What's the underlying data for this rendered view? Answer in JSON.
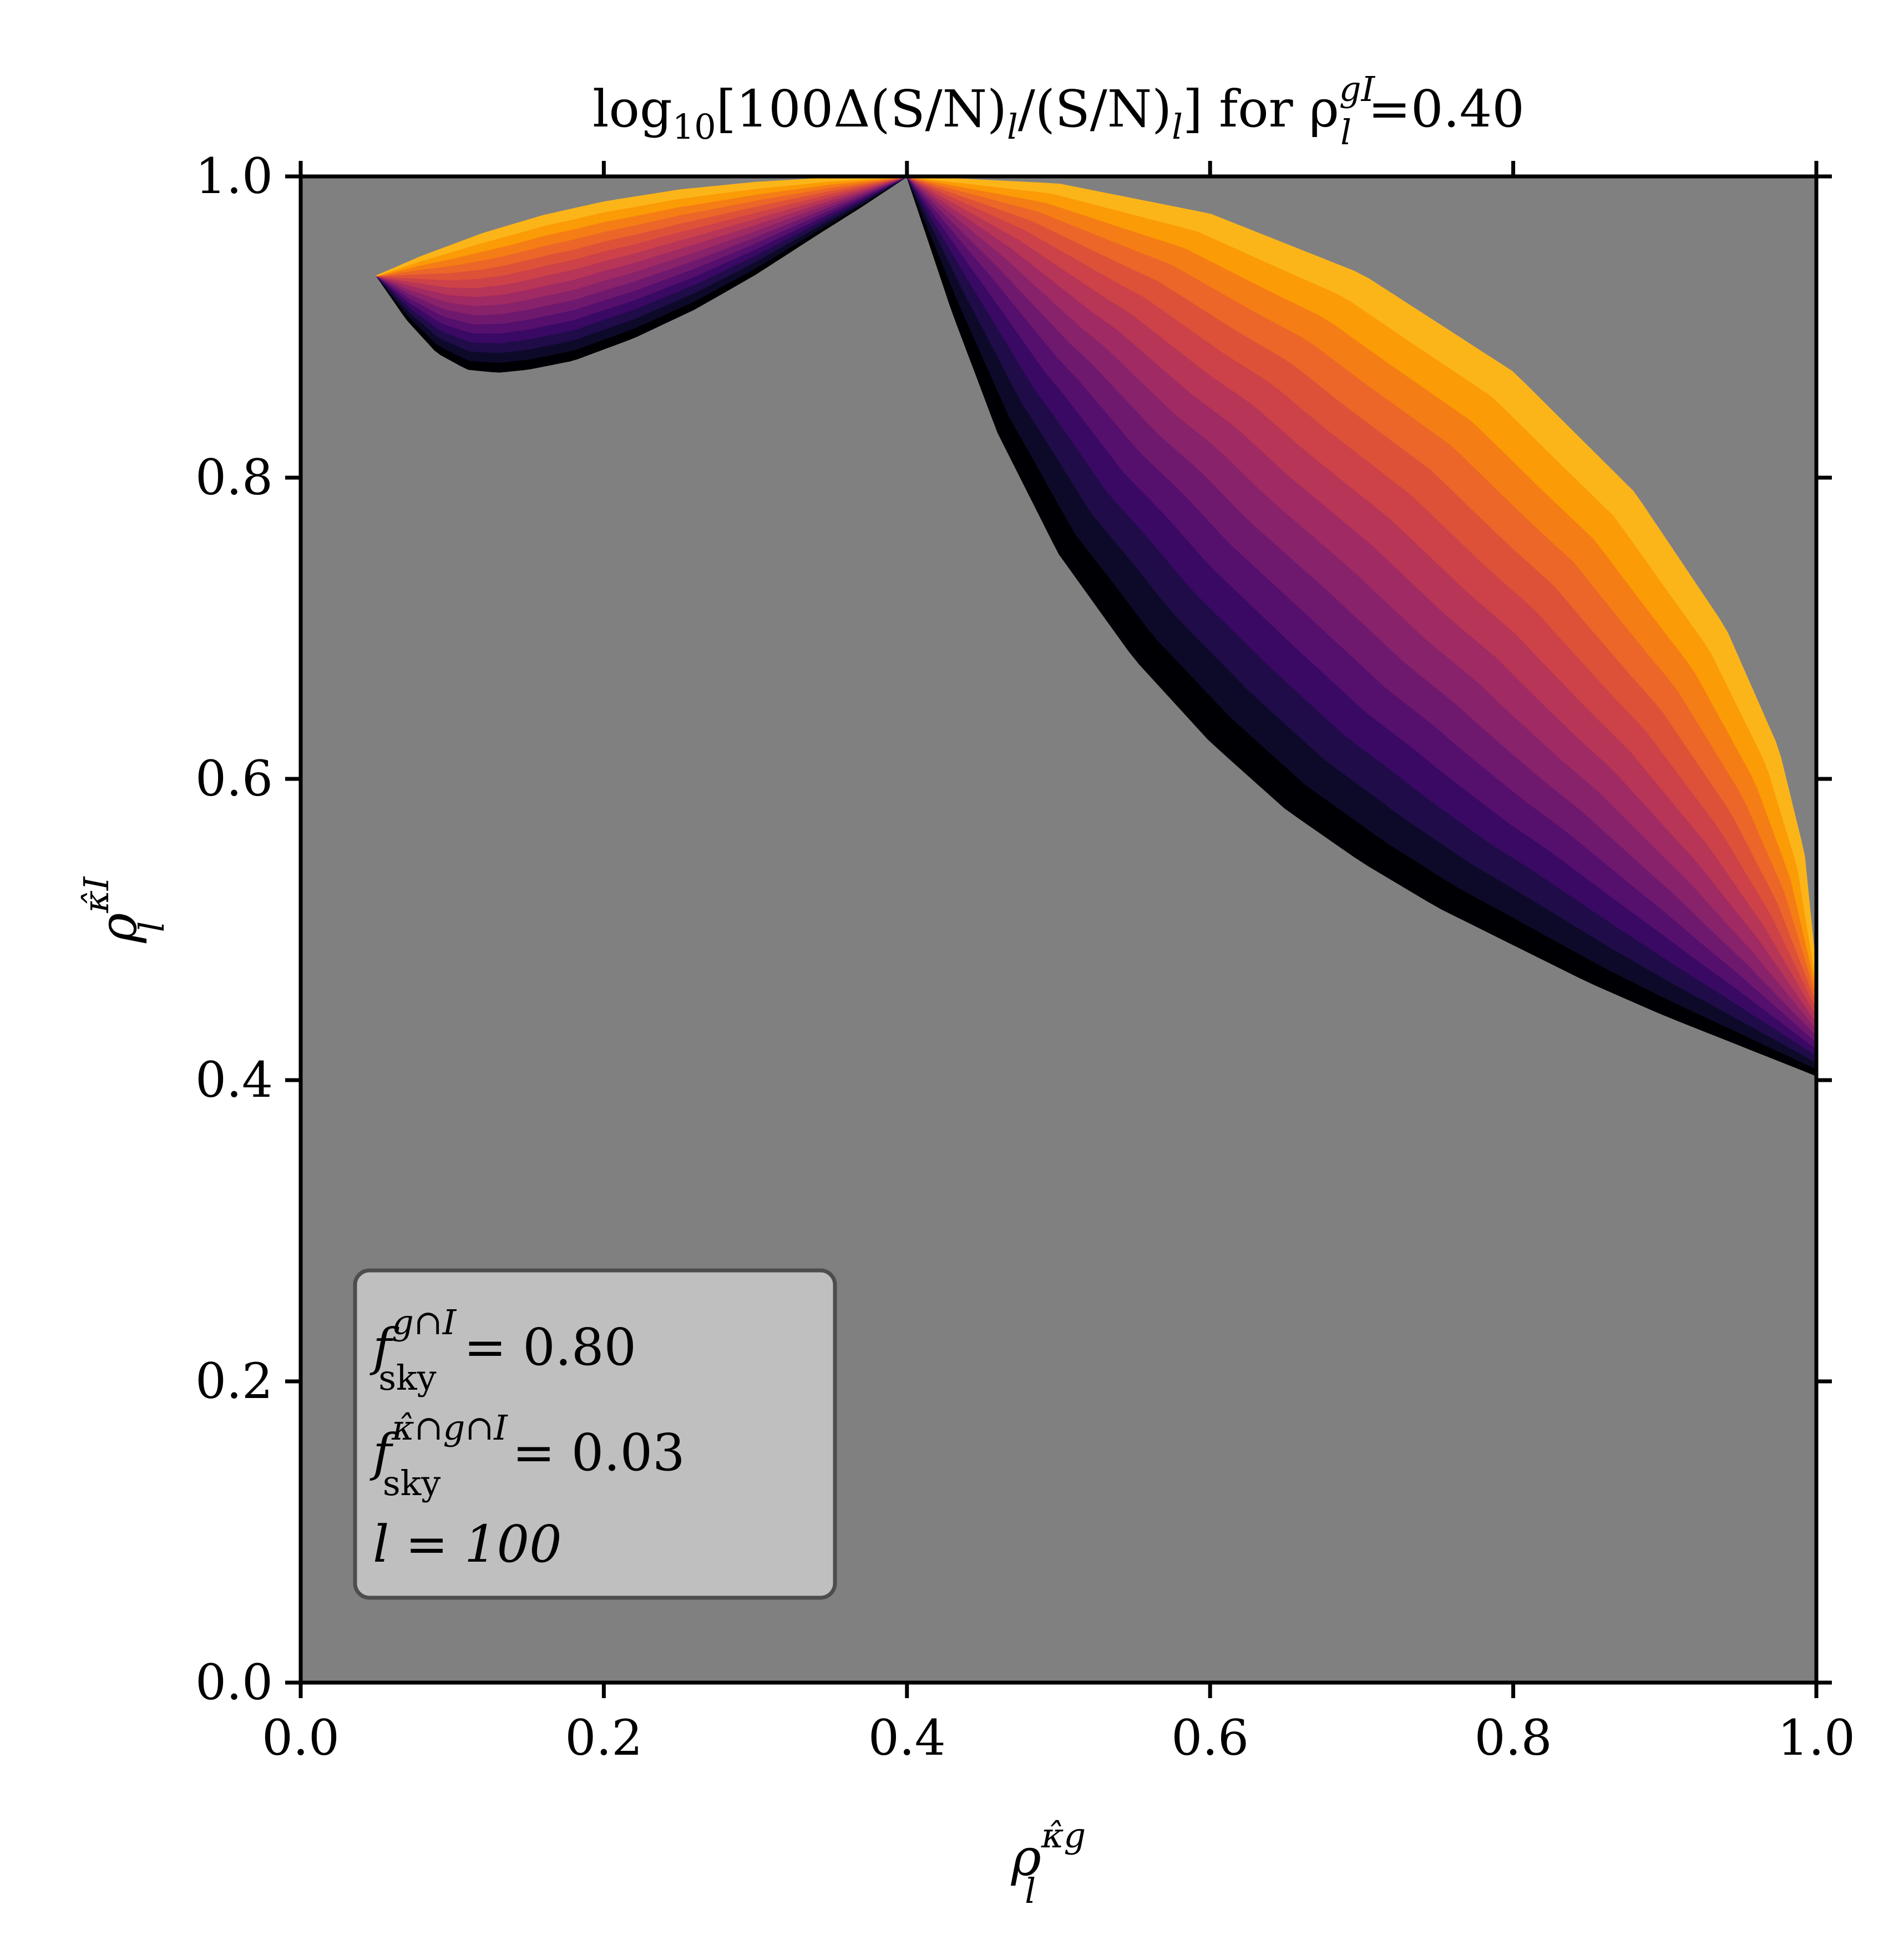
{
  "chart_data": {
    "type": "heatmap",
    "title_parts": {
      "pre": "log",
      "sub": "10",
      "mid": "[100Δ(S/N)",
      "sub2": "l",
      "mid2": "/(S/N)",
      "sub3": "l",
      "end": "] for ρ",
      "sup4": "gI",
      "sub4": "l",
      "value": "=0.40"
    },
    "xlabel": {
      "base": "ρ",
      "sup": "κ̂g",
      "sub": "l"
    },
    "ylabel": {
      "base": "ρ",
      "sup": "κ̂I",
      "sub": "l"
    },
    "xlim": [
      0,
      1
    ],
    "ylim": [
      0,
      1
    ],
    "xticks": [
      "0.0",
      "0.2",
      "0.4",
      "0.6",
      "0.8",
      "1.0"
    ],
    "yticks": [
      "0.0",
      "0.2",
      "0.4",
      "0.6",
      "0.8",
      "1.0"
    ],
    "background_color": "#808080",
    "colormap": "inferno",
    "colors": [
      "#000004",
      "#0d0a29",
      "#1f0c48",
      "#390963",
      "#550f6d",
      "#6f196e",
      "#88226a",
      "#a02a63",
      "#b73557",
      "#cc4248",
      "#dd5139",
      "#eb6628",
      "#f57d15",
      "#fb9b06",
      "#fcb519"
    ],
    "regions": [
      {
        "name": "left-lobe",
        "outer": [
          [
            0.05,
            0.934
          ],
          [
            0.08,
            0.947
          ],
          [
            0.12,
            0.962
          ],
          [
            0.16,
            0.974
          ],
          [
            0.2,
            0.983
          ],
          [
            0.25,
            0.991
          ],
          [
            0.3,
            0.996
          ],
          [
            0.35,
            0.999
          ],
          [
            0.4,
            1.0
          ]
        ],
        "inner": [
          [
            0.05,
            0.934
          ],
          [
            0.07,
            0.905
          ],
          [
            0.09,
            0.883
          ],
          [
            0.11,
            0.872
          ],
          [
            0.13,
            0.87
          ],
          [
            0.15,
            0.872
          ],
          [
            0.18,
            0.878
          ],
          [
            0.22,
            0.893
          ],
          [
            0.26,
            0.912
          ],
          [
            0.3,
            0.935
          ],
          [
            0.34,
            0.961
          ],
          [
            0.37,
            0.98
          ],
          [
            0.4,
            1.0
          ]
        ]
      },
      {
        "name": "right-lobe",
        "outer": [
          [
            0.4,
            1.0
          ],
          [
            0.5,
            0.995
          ],
          [
            0.6,
            0.975
          ],
          [
            0.7,
            0.935
          ],
          [
            0.8,
            0.87
          ],
          [
            0.88,
            0.79
          ],
          [
            0.94,
            0.7
          ],
          [
            0.975,
            0.62
          ],
          [
            0.992,
            0.55
          ],
          [
            1.0,
            0.47
          ]
        ],
        "inner": [
          [
            0.4,
            1.0
          ],
          [
            0.43,
            0.91
          ],
          [
            0.46,
            0.83
          ],
          [
            0.5,
            0.75
          ],
          [
            0.55,
            0.68
          ],
          [
            0.6,
            0.625
          ],
          [
            0.65,
            0.58
          ],
          [
            0.7,
            0.545
          ],
          [
            0.75,
            0.515
          ],
          [
            0.8,
            0.49
          ],
          [
            0.85,
            0.465
          ],
          [
            0.9,
            0.443
          ],
          [
            0.95,
            0.423
          ],
          [
            1.0,
            0.403
          ]
        ]
      }
    ],
    "annotation": {
      "line1": {
        "base": "f",
        "sup": "g∩I",
        "sub": "sky",
        "rest": " = 0.80"
      },
      "line2": {
        "base": "f",
        "sup": "κ̂∩g∩I",
        "sub": "sky",
        "rest": " = 0.03"
      },
      "line3": {
        "text": "l = 100"
      }
    }
  }
}
